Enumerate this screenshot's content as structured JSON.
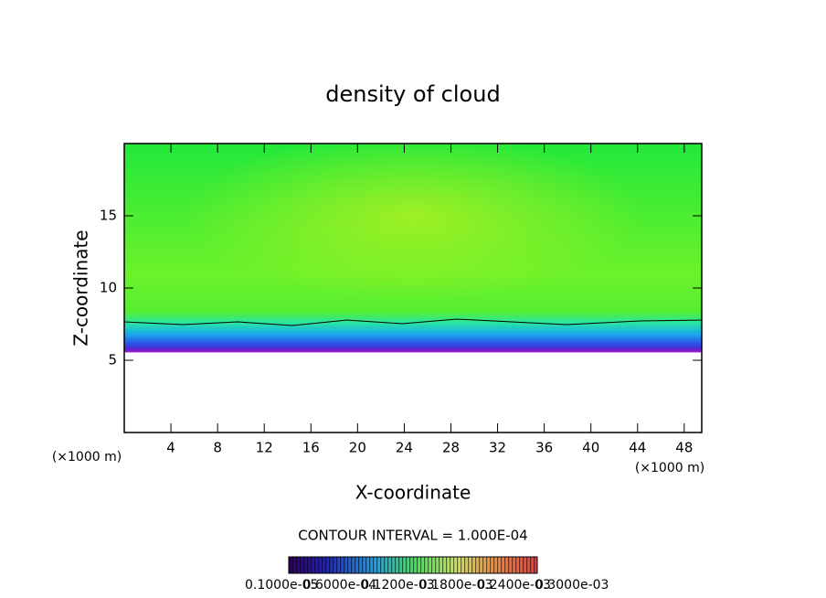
{
  "chart_data": {
    "type": "heatmap",
    "title": "density of cloud",
    "xlabel": "X-coordinate",
    "ylabel": "Z-coordinate",
    "xunit": "(×1000 m)",
    "yunit": "(×1000 m)",
    "xlim": [
      0,
      49.5
    ],
    "xticks": [
      4,
      8,
      12,
      16,
      20,
      24,
      28,
      32,
      36,
      40,
      44,
      48
    ],
    "ylim": [
      0,
      20
    ],
    "yticks": [
      5,
      10,
      15
    ],
    "contour_note": "CONTOUR INTERVAL = 1.000E-04",
    "colorbar_labels": [
      "0.1000e-05",
      "0.6000e-04",
      "0.1200e-03",
      "0.1800e-03",
      "0.2400e-03",
      "0.3000e-03"
    ]
  }
}
